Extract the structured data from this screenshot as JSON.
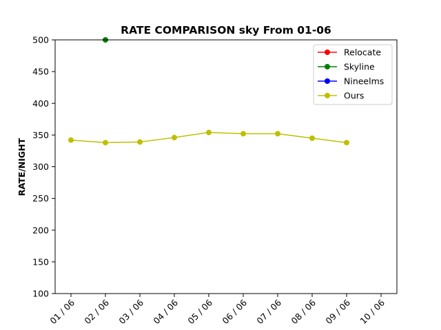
{
  "chart_data": {
    "type": "line",
    "title": "RATE COMPARISON sky From 01-06",
    "xlabel": "",
    "ylabel": "RATE/NIGHT",
    "categories": [
      "01 / 06",
      "02 / 06",
      "03 / 06",
      "04 / 06",
      "05 / 06",
      "06 / 06",
      "07 / 06",
      "08 / 06",
      "09 / 06",
      "10 / 06"
    ],
    "yticks": [
      100,
      150,
      200,
      250,
      300,
      350,
      400,
      450,
      500
    ],
    "ylim": [
      100,
      500
    ],
    "grid": false,
    "legend_position": "top-right",
    "series": [
      {
        "name": "Relocate",
        "color": "#ff0000",
        "values": [
          null,
          null,
          null,
          null,
          null,
          null,
          null,
          null,
          null,
          null
        ]
      },
      {
        "name": "Skyline",
        "color": "#008000",
        "values": [
          null,
          500,
          null,
          null,
          null,
          null,
          null,
          null,
          null,
          null
        ]
      },
      {
        "name": "Nineelms",
        "color": "#0000ff",
        "values": [
          null,
          null,
          null,
          null,
          null,
          null,
          null,
          null,
          null,
          null
        ]
      },
      {
        "name": "Ours",
        "color": "#bfbf00",
        "values": [
          342,
          338,
          339,
          346,
          354,
          352,
          352,
          345,
          338,
          null
        ]
      }
    ]
  }
}
